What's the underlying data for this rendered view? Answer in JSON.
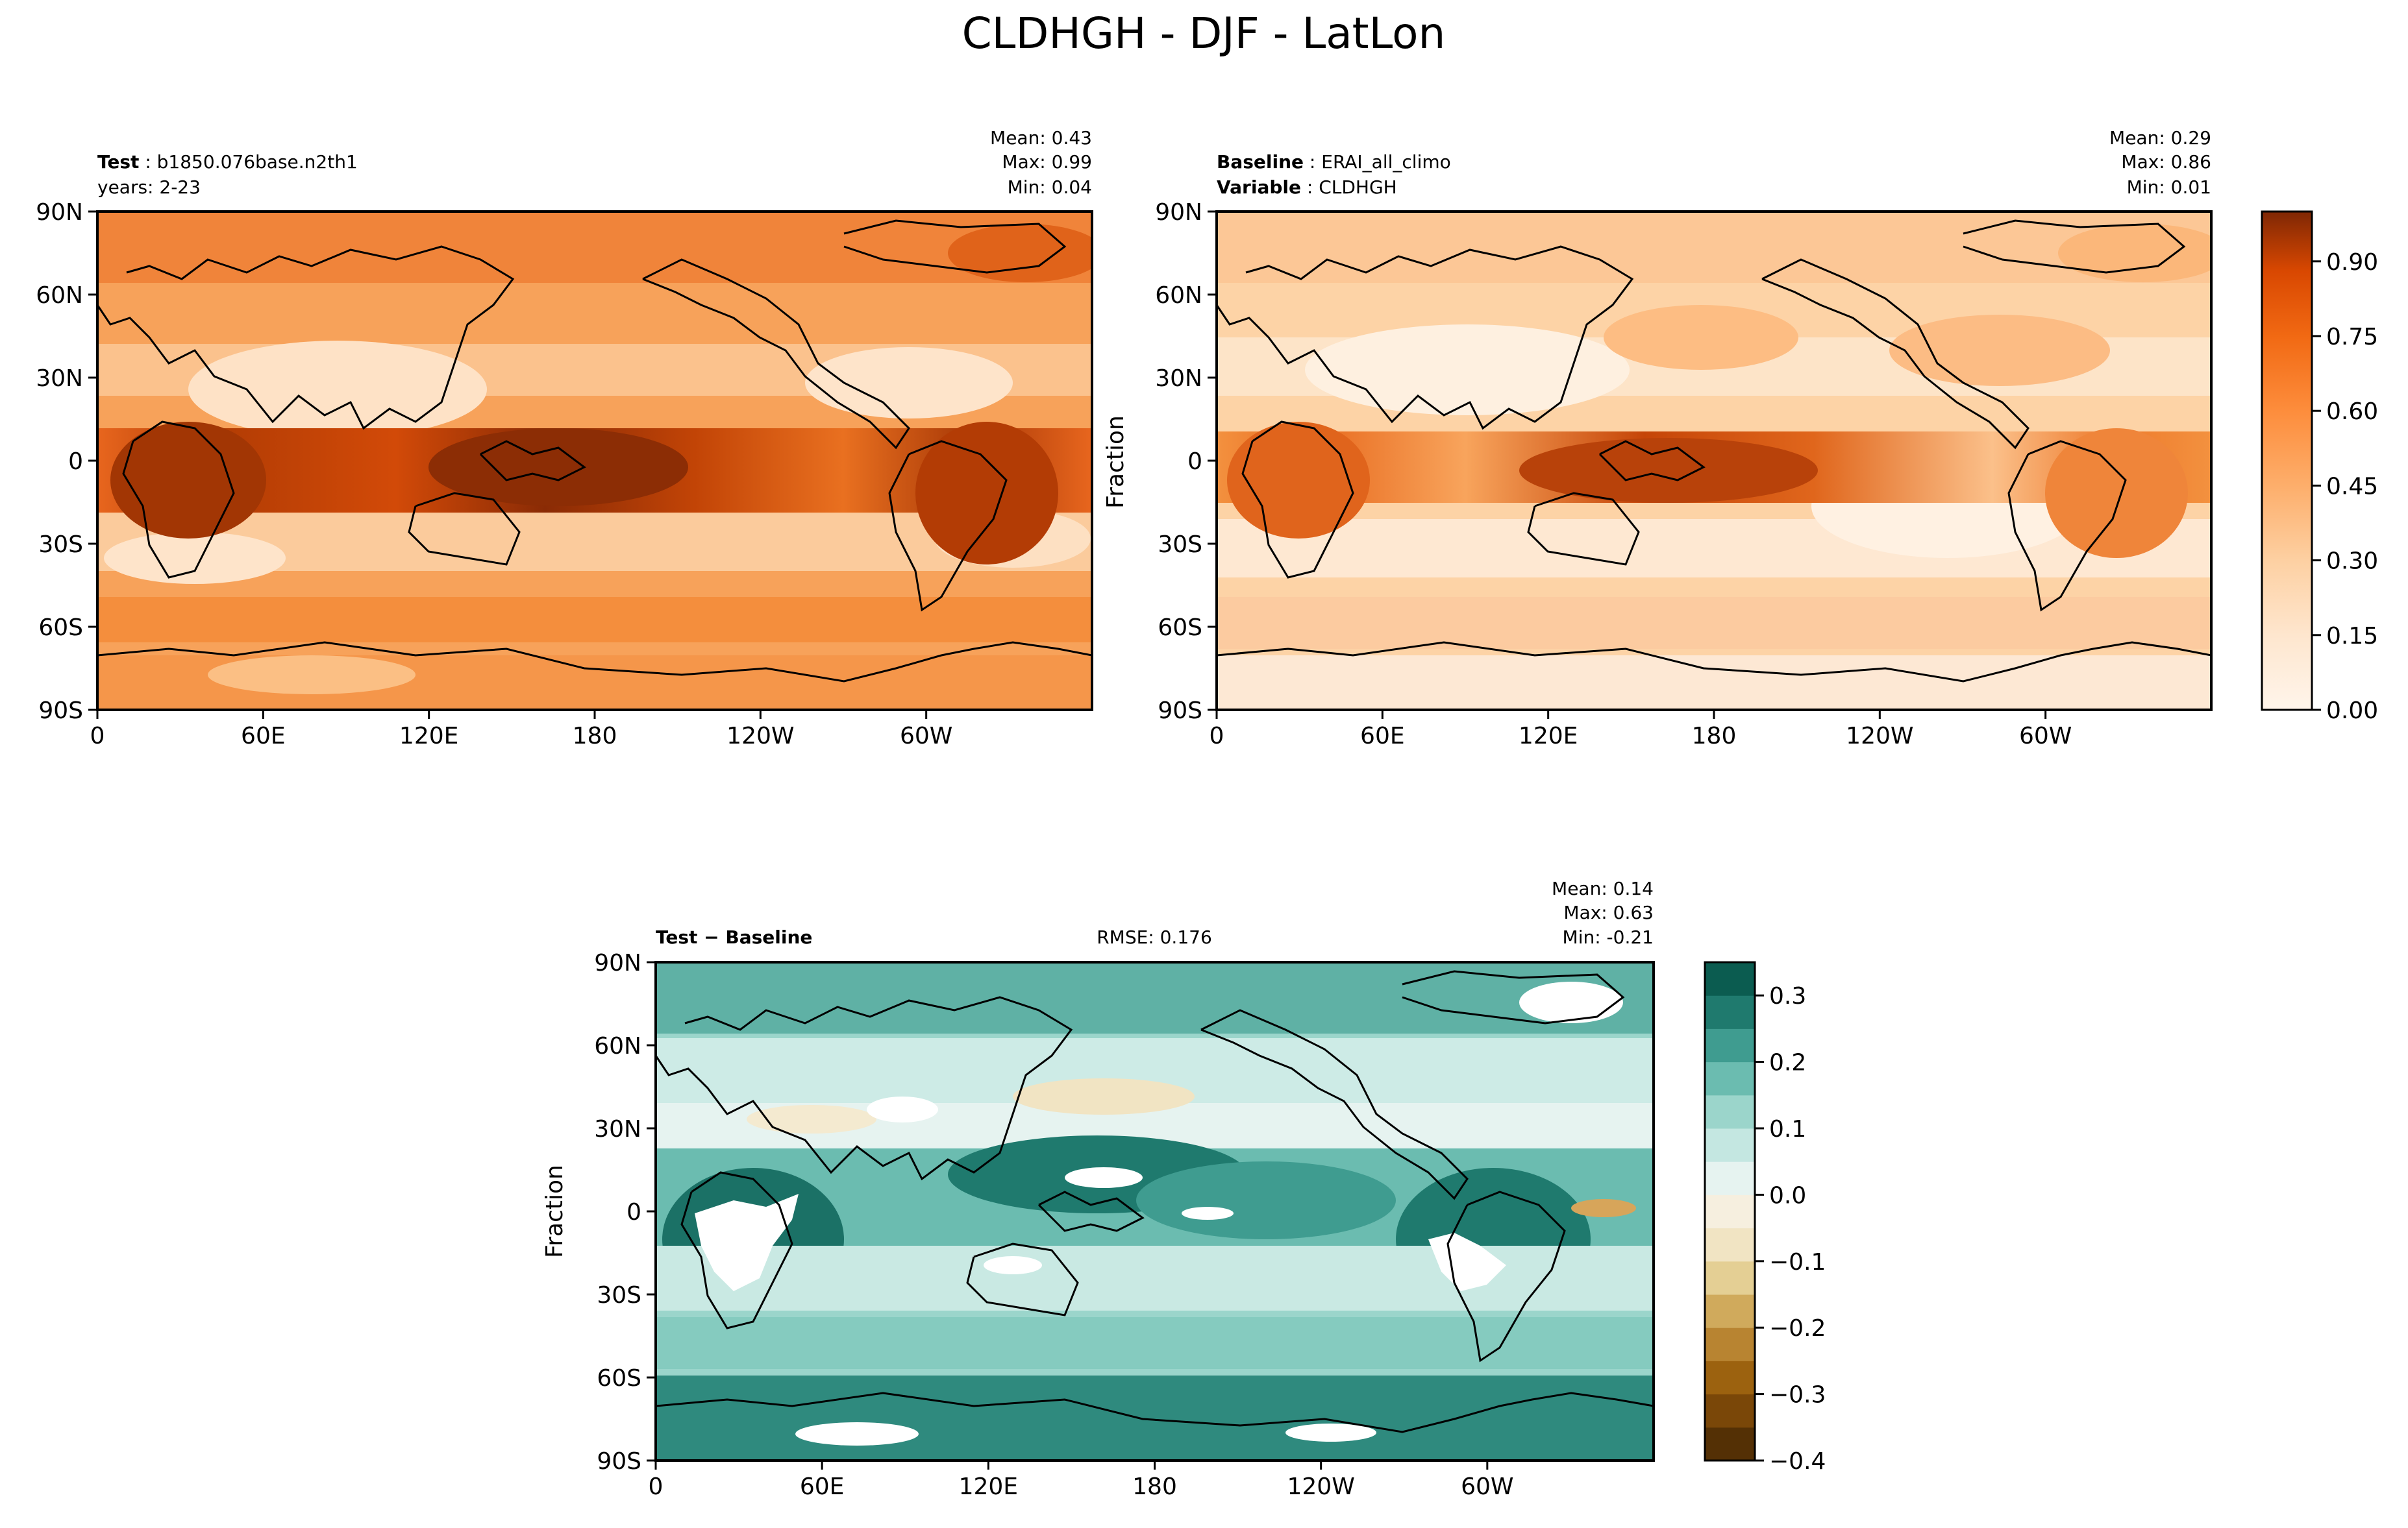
{
  "figure": {
    "title": "CLDHGH - DJF - LatLon"
  },
  "panels": {
    "test": {
      "label_bold": "Test",
      "label_value": "b1850.076base.n2th1",
      "label_line2": "years: 2-23",
      "stats": {
        "mean": "Mean:  0.43",
        "max": "Max:  0.99",
        "min": "Min:  0.04"
      },
      "ylabel": ""
    },
    "baseline": {
      "label_bold": "Baseline",
      "label_value": "ERAI_all_climo",
      "label_bold2": "Variable",
      "label_value2": "CLDHGH",
      "stats": {
        "mean": "Mean:  0.29",
        "max": "Max:  0.86",
        "min": "Min:  0.01"
      },
      "ylabel": "Fraction"
    },
    "diff": {
      "label_bold": "Test − Baseline",
      "rmse": "RMSE: 0.176",
      "stats": {
        "mean": "Mean:  0.14",
        "max": "Max:  0.63",
        "min": "Min: -0.21"
      },
      "ylabel": "Fraction"
    }
  },
  "axes": {
    "xticks": [
      "0",
      "60E",
      "120E",
      "180",
      "120W",
      "60W"
    ],
    "yticks": [
      "90N",
      "60N",
      "30N",
      "0",
      "30S",
      "60S",
      "90S"
    ]
  },
  "colorbars": {
    "fraction": {
      "ticks": [
        "0.00",
        "0.15",
        "0.30",
        "0.45",
        "0.60",
        "0.75",
        "0.90"
      ],
      "min": 0.0,
      "max": 1.0
    },
    "difference": {
      "ticks": [
        "−0.4",
        "−0.3",
        "−0.2",
        "−0.1",
        "0.0",
        "0.1",
        "0.2",
        "0.3"
      ],
      "min": -0.4,
      "max": 0.35
    }
  },
  "chart_data": [
    {
      "type": "heatmap",
      "title": "Test: b1850.076base.n2th1",
      "x": [
        "0",
        "60E",
        "120E",
        "180",
        "120W",
        "60W"
      ],
      "y": [
        "90N",
        "60N",
        "30N",
        "0",
        "30S",
        "60S",
        "90S"
      ],
      "colormap": "Oranges",
      "range": [
        0.0,
        1.0
      ],
      "stats": {
        "mean": 0.43,
        "max": 0.99,
        "min": 0.04
      }
    },
    {
      "type": "heatmap",
      "title": "Baseline: ERAI_all_climo",
      "x": [
        "0",
        "60E",
        "120E",
        "180",
        "120W",
        "60W"
      ],
      "y": [
        "90N",
        "60N",
        "30N",
        "0",
        "30S",
        "60S",
        "90S"
      ],
      "ylabel": "Fraction",
      "colormap": "Oranges",
      "range": [
        0.0,
        1.0
      ],
      "stats": {
        "mean": 0.29,
        "max": 0.86,
        "min": 0.01
      }
    },
    {
      "type": "heatmap",
      "title": "Test − Baseline",
      "x": [
        "0",
        "60E",
        "120E",
        "180",
        "120W",
        "60W"
      ],
      "y": [
        "90N",
        "60N",
        "30N",
        "0",
        "30S",
        "60S",
        "90S"
      ],
      "ylabel": "Fraction",
      "colormap": "BrBG",
      "range": [
        -0.4,
        0.35
      ],
      "rmse": 0.176,
      "stats": {
        "mean": 0.14,
        "max": 0.63,
        "min": -0.21
      }
    }
  ]
}
